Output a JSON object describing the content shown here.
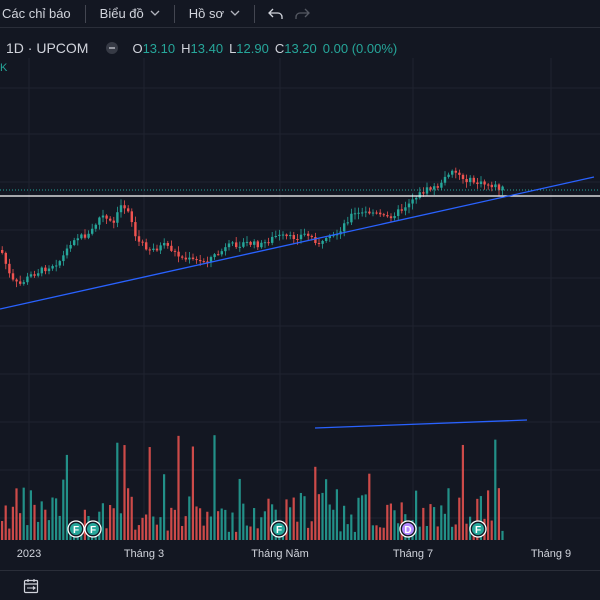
{
  "toolbar": {
    "indicators_label": "Các chỉ báo",
    "chart_label": "Biểu đồ",
    "profile_label": "Hồ sơ"
  },
  "legend": {
    "symbol": "1D · UPCOM",
    "open_label": "O",
    "open": "13.10",
    "high_label": "H",
    "high": "13.40",
    "low_label": "L",
    "low": "12.90",
    "close_label": "C",
    "close": "13.20",
    "change": "0.00 (0.00%)",
    "volume_marker": "K"
  },
  "time_axis": {
    "ticks": [
      "2023",
      "Tháng 3",
      "Tháng Năm",
      "Tháng 7",
      "Tháng 9"
    ]
  },
  "events": [
    "F",
    "F",
    "F",
    "D",
    "F"
  ],
  "colors": {
    "background": "#131722",
    "up": "#26a69a",
    "down": "#ef5350",
    "trendline": "#2962ff",
    "grid": "#1f2330",
    "price_line": "#ffffff"
  },
  "icons": {
    "indicators_chevron": "chevron-down-icon",
    "chart_chevron": "chevron-down-icon",
    "profile_chevron": "chevron-down-icon",
    "undo": "undo-icon",
    "redo": "redo-icon",
    "date_range": "calendar-range-icon"
  }
}
